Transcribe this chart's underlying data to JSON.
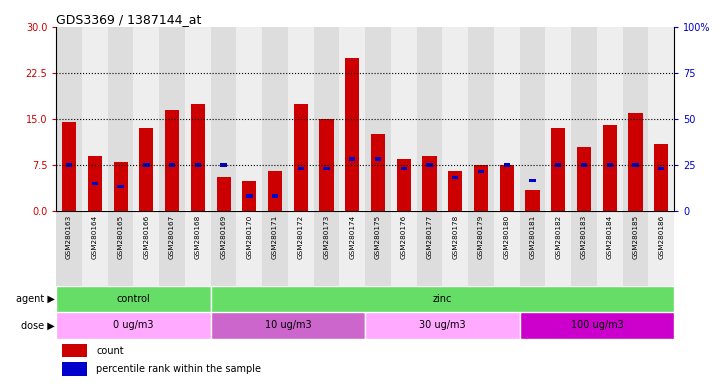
{
  "title": "GDS3369 / 1387144_at",
  "samples": [
    "GSM280163",
    "GSM280164",
    "GSM280165",
    "GSM280166",
    "GSM280167",
    "GSM280168",
    "GSM280169",
    "GSM280170",
    "GSM280171",
    "GSM280172",
    "GSM280173",
    "GSM280174",
    "GSM280175",
    "GSM280176",
    "GSM280177",
    "GSM280178",
    "GSM280179",
    "GSM280180",
    "GSM280181",
    "GSM280182",
    "GSM280183",
    "GSM280184",
    "GSM280185",
    "GSM280186"
  ],
  "counts": [
    14.5,
    9.0,
    8.0,
    13.5,
    16.5,
    17.5,
    5.5,
    5.0,
    6.5,
    17.5,
    15.0,
    25.0,
    12.5,
    8.5,
    9.0,
    6.5,
    7.5,
    7.5,
    3.5,
    13.5,
    10.5,
    14.0,
    16.0,
    11.0
  ],
  "percentile_ranks": [
    7.5,
    4.5,
    4.0,
    7.5,
    7.5,
    7.5,
    7.5,
    2.5,
    2.5,
    7.0,
    7.0,
    8.5,
    8.5,
    7.0,
    7.5,
    5.5,
    6.5,
    7.5,
    5.0,
    7.5,
    7.5,
    7.5,
    7.5,
    7.0
  ],
  "ylim_left": [
    0,
    30
  ],
  "ylim_right": [
    0,
    100
  ],
  "yticks_left": [
    0,
    7.5,
    15,
    22.5,
    30
  ],
  "yticks_right": [
    0,
    25,
    50,
    75,
    100
  ],
  "bar_color": "#cc0000",
  "percentile_color": "#0000cc",
  "agent_groups": [
    {
      "label": "control",
      "start": 0,
      "end": 6,
      "color": "#66dd66"
    },
    {
      "label": "zinc",
      "start": 6,
      "end": 24,
      "color": "#66dd66"
    }
  ],
  "dose_groups": [
    {
      "label": "0 ug/m3",
      "start": 0,
      "end": 6,
      "color": "#ffaaff"
    },
    {
      "label": "10 ug/m3",
      "start": 6,
      "end": 12,
      "color": "#cc66cc"
    },
    {
      "label": "30 ug/m3",
      "start": 12,
      "end": 18,
      "color": "#ffaaff"
    },
    {
      "label": "100 ug/m3",
      "start": 18,
      "end": 24,
      "color": "#cc00cc"
    }
  ],
  "legend_count_label": "count",
  "legend_pct_label": "percentile rank within the sample",
  "agent_label": "agent",
  "dose_label": "dose",
  "left_axis_color": "#cc0000",
  "right_axis_color": "#0000cc",
  "col_bg_even": "#dddddd",
  "col_bg_odd": "#eeeeee"
}
